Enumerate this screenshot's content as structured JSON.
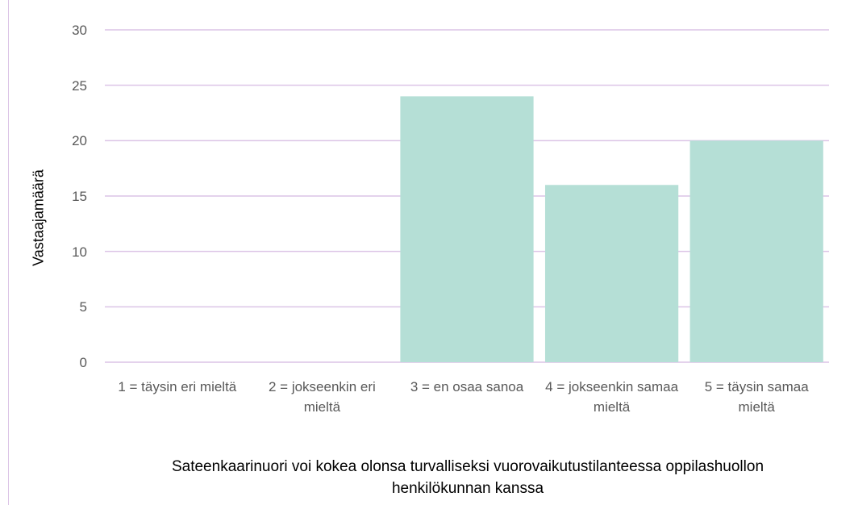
{
  "chart_data": {
    "type": "bar",
    "x_label": "Sateenkaarinuori voi kokea olonsa turvalliseksi vuorovaikutustilanteessa oppilashuollon henkilökunnan kanssa",
    "y_label": "Vastaajamäärä",
    "categories": [
      "1 = täysin eri mieltä",
      "2 = jokseenkin eri mieltä",
      "3 = en osaa sanoa",
      "4 = jokseenkin samaa mieltä",
      "5 = täysin samaa mieltä"
    ],
    "values": [
      0,
      0,
      24,
      16,
      20
    ],
    "color": "#b5dfd6",
    "ylim": [
      0,
      30
    ],
    "yticks": [
      0,
      5,
      10,
      15,
      20,
      25,
      30
    ],
    "grid": true
  }
}
